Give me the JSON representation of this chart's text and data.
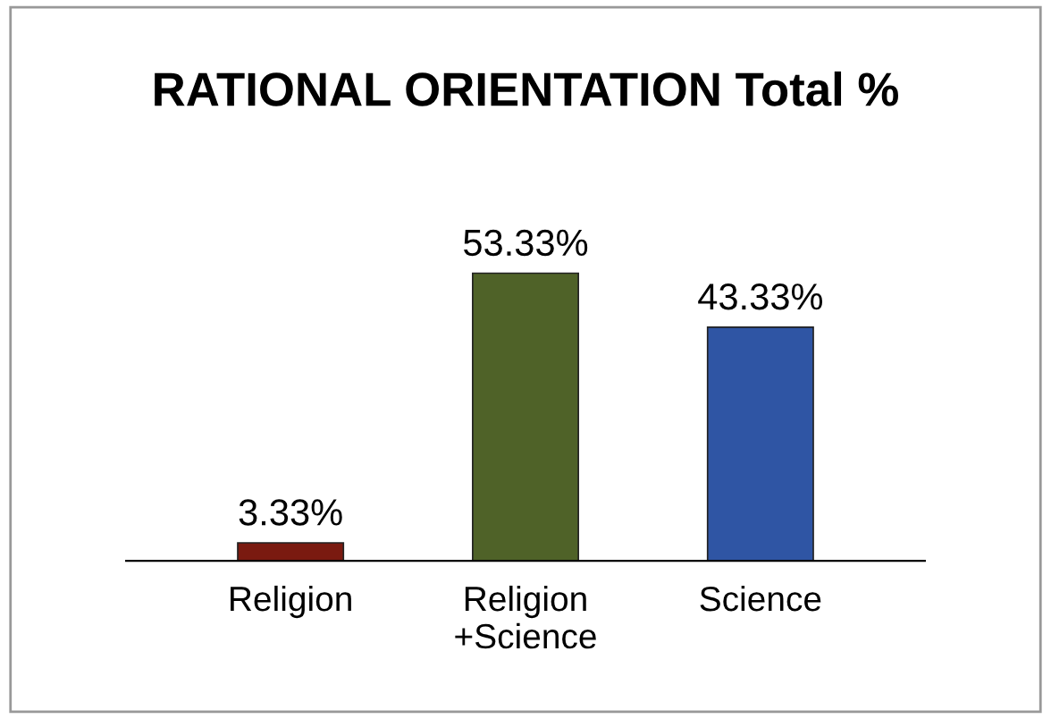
{
  "chart_data": {
    "type": "bar",
    "title": "RATIONAL ORIENTATION Total %",
    "categories": [
      "Religion",
      "Religion\n+Science",
      "Science"
    ],
    "values": [
      3.33,
      53.33,
      43.33
    ],
    "colors": [
      "#7a1a10",
      "#4f6228",
      "#2f55a4"
    ],
    "value_labels": [
      "3.33%",
      "53.33%",
      "43.33%"
    ],
    "grid": false,
    "legend": false
  }
}
